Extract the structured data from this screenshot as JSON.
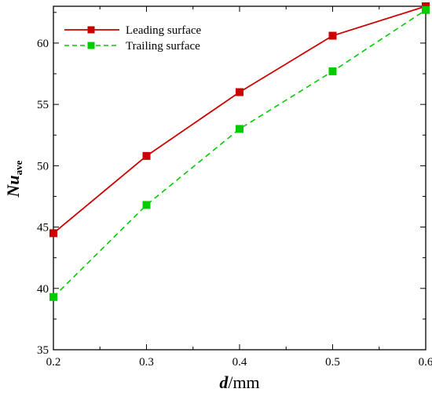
{
  "chart_data": {
    "type": "line",
    "x": [
      0.2,
      0.3,
      0.4,
      0.5,
      0.6
    ],
    "series": [
      {
        "name": "Leading surface",
        "values": [
          44.5,
          50.8,
          56.0,
          60.6,
          63.0
        ],
        "color": "#cc0000",
        "line_style": "solid",
        "marker": "square"
      },
      {
        "name": "Trailing surface",
        "values": [
          39.3,
          46.8,
          53.0,
          57.7,
          62.7
        ],
        "color": "#00cc00",
        "line_style": "dashed",
        "marker": "square"
      }
    ],
    "xlim": [
      0.2,
      0.6
    ],
    "ylim": [
      35,
      63
    ],
    "x_ticks": [
      "0.2",
      "0.3",
      "0.4",
      "0.5",
      "0.6"
    ],
    "y_ticks": [
      "35",
      "40",
      "45",
      "50",
      "55",
      "60"
    ],
    "xlabel": {
      "var": "d",
      "unit": "/mm"
    },
    "ylabel": {
      "main": "Nu",
      "sub": "ave"
    },
    "legend_position": "top-left",
    "grid": false
  }
}
